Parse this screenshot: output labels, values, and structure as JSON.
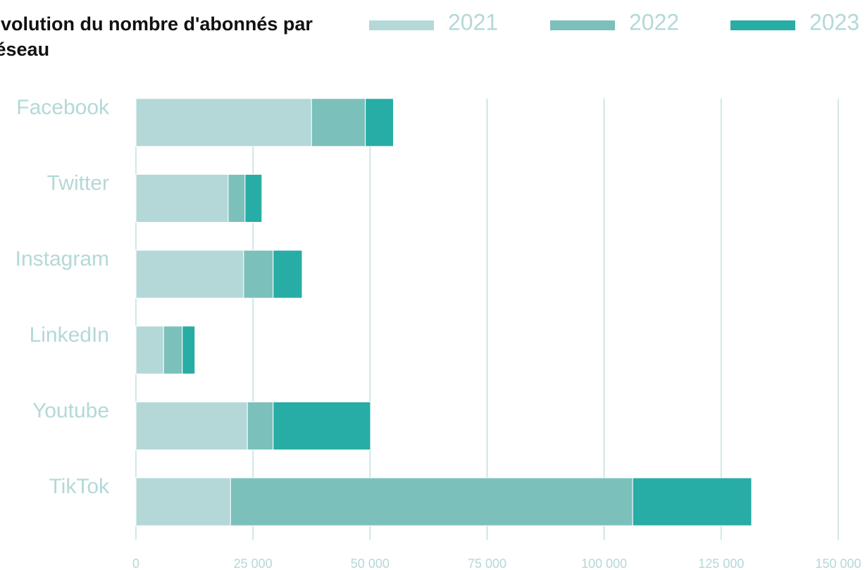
{
  "chart_data": {
    "type": "stacked_barh",
    "title": "Évolution du nombre d'abonnés par réseau",
    "categories": [
      "Facebook",
      "Twitter",
      "Instagram",
      "LinkedIn",
      "Youtube",
      "TikTok"
    ],
    "series": [
      {
        "name": "2021",
        "color": "#b4d8d8",
        "values": [
          37500,
          19700,
          23000,
          5900,
          23800,
          20200
        ]
      },
      {
        "name": "2022",
        "color": "#7cc0bc",
        "values": [
          11500,
          3600,
          6300,
          4000,
          5500,
          85900
        ]
      },
      {
        "name": "2023",
        "color": "#28aca6",
        "values": [
          6000,
          3600,
          6200,
          2700,
          20800,
          25400
        ]
      }
    ],
    "xlim": [
      0,
      150000
    ],
    "xticks": [
      0,
      {
        "value": 25000,
        "label": "25 000"
      },
      {
        "value": 50000,
        "label": "50 000"
      },
      {
        "value": 75000,
        "label": "75 000"
      },
      {
        "value": 100000,
        "label": "100 000"
      },
      {
        "value": 125000,
        "label": "125 000"
      },
      {
        "value": 150000,
        "label": "150 000"
      }
    ],
    "grid": true,
    "legend": "top"
  }
}
